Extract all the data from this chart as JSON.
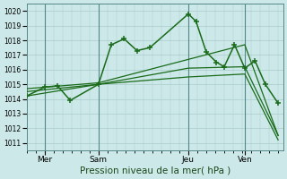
{
  "bg_color": "#cce8e8",
  "grid_color": "#aacccc",
  "line_color": "#1a6b1a",
  "title": "Pression niveau de la mer( hPa )",
  "ylabel_ticks": [
    1011,
    1012,
    1013,
    1014,
    1015,
    1016,
    1017,
    1018,
    1019,
    1020
  ],
  "ylim": [
    1010.5,
    1020.5
  ],
  "xlim": [
    0.0,
    10.0
  ],
  "x_tick_positions": [
    0.7,
    2.8,
    6.3,
    8.5
  ],
  "x_tick_labels": [
    "Mer",
    "Sam",
    "Jeu",
    "Ven"
  ],
  "vlines": [
    0.7,
    2.8,
    6.3,
    8.5
  ],
  "series": [
    {
      "x": [
        0.0,
        0.7,
        1.2,
        1.7,
        2.8,
        3.3,
        3.8,
        4.3,
        4.8,
        6.3,
        6.6,
        7.0,
        7.4,
        7.7,
        8.1,
        8.5,
        8.9,
        9.3,
        9.8
      ],
      "y": [
        1014.2,
        1014.8,
        1014.9,
        1013.9,
        1015.0,
        1017.7,
        1018.1,
        1017.3,
        1017.5,
        1019.8,
        1019.3,
        1017.2,
        1016.5,
        1016.2,
        1017.7,
        1016.1,
        1016.6,
        1015.0,
        1013.7
      ],
      "marker": "+",
      "linewidth": 1.1,
      "markersize": 4.5,
      "zorder": 5
    },
    {
      "x": [
        0.0,
        2.8,
        6.3,
        8.5,
        9.8
      ],
      "y": [
        1014.7,
        1015.1,
        1016.7,
        1017.7,
        1011.5
      ],
      "marker": null,
      "linewidth": 0.9,
      "markersize": 0,
      "zorder": 4
    },
    {
      "x": [
        0.0,
        2.8,
        6.3,
        8.5,
        9.8
      ],
      "y": [
        1014.5,
        1015.0,
        1016.1,
        1016.2,
        1011.5
      ],
      "marker": null,
      "linewidth": 0.9,
      "markersize": 0,
      "zorder": 4
    },
    {
      "x": [
        0.0,
        2.8,
        6.3,
        8.5,
        9.8
      ],
      "y": [
        1014.2,
        1015.0,
        1015.5,
        1015.7,
        1011.2
      ],
      "marker": null,
      "linewidth": 0.9,
      "markersize": 0,
      "zorder": 4
    }
  ],
  "ytick_fontsize": 5.5,
  "xtick_fontsize": 6.5,
  "xlabel_fontsize": 7.5
}
